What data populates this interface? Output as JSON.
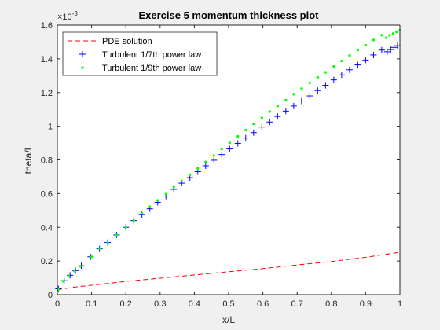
{
  "chart_data": {
    "type": "line",
    "title": "Exercise 5 momentum thickness plot",
    "xlabel": "x/L",
    "ylabel": "theta/L",
    "exponent_label": "×10",
    "exponent_power": "-3",
    "xlim": [
      0,
      1
    ],
    "ylim": [
      0,
      1.6
    ],
    "xticks": [
      0,
      0.1,
      0.2,
      0.3,
      0.4,
      0.5,
      0.6,
      0.7,
      0.8,
      0.9,
      1
    ],
    "xtick_labels": [
      "0",
      "0.1",
      "0.2",
      "0.3",
      "0.4",
      "0.5",
      "0.6",
      "0.7",
      "0.8",
      "0.9",
      "1"
    ],
    "yticks": [
      0,
      0.2,
      0.4,
      0.6,
      0.8,
      1,
      1.2,
      1.4,
      1.6
    ],
    "ytick_labels": [
      "0",
      "0.2",
      "0.4",
      "0.6",
      "0.8",
      "1",
      "1.2",
      "1.4",
      "1.6"
    ],
    "grid": false,
    "legend_position": "top-left",
    "series": [
      {
        "name": "PDE solution",
        "style": "dashed-line",
        "color": "#ff0000",
        "x": [
          0,
          0.05,
          0.1,
          0.2,
          0.3,
          0.4,
          0.5,
          0.6,
          0.7,
          0.8,
          0.9,
          1.0
        ],
        "y": [
          0.03,
          0.045,
          0.056,
          0.079,
          0.098,
          0.117,
          0.136,
          0.155,
          0.177,
          0.197,
          0.222,
          0.252
        ]
      },
      {
        "name": "Turbulent 1/7th power law",
        "style": "plus-marker",
        "color": "#0000ff",
        "x": [
          0.003,
          0.02,
          0.037,
          0.053,
          0.07,
          0.097,
          0.123,
          0.147,
          0.173,
          0.2,
          0.223,
          0.247,
          0.27,
          0.293,
          0.317,
          0.34,
          0.363,
          0.387,
          0.41,
          0.433,
          0.457,
          0.48,
          0.503,
          0.527,
          0.55,
          0.573,
          0.597,
          0.62,
          0.643,
          0.667,
          0.69,
          0.713,
          0.737,
          0.76,
          0.783,
          0.807,
          0.83,
          0.853,
          0.877,
          0.9,
          0.923,
          0.947,
          0.963,
          0.973,
          0.983,
          0.993
        ],
        "y": [
          0.035,
          0.083,
          0.115,
          0.143,
          0.172,
          0.225,
          0.272,
          0.31,
          0.355,
          0.4,
          0.44,
          0.475,
          0.51,
          0.548,
          0.585,
          0.625,
          0.662,
          0.695,
          0.73,
          0.765,
          0.798,
          0.832,
          0.865,
          0.898,
          0.93,
          0.962,
          0.995,
          1.025,
          1.058,
          1.09,
          1.12,
          1.15,
          1.18,
          1.212,
          1.243,
          1.275,
          1.305,
          1.335,
          1.364,
          1.393,
          1.423,
          1.452,
          1.442,
          1.455,
          1.468,
          1.478
        ]
      },
      {
        "name": "Turbulent 1/9th power law",
        "style": "dot-marker",
        "color": "#00ff00",
        "x": [
          0.003,
          0.017,
          0.033,
          0.05,
          0.067,
          0.1,
          0.123,
          0.147,
          0.173,
          0.2,
          0.223,
          0.247,
          0.27,
          0.293,
          0.317,
          0.34,
          0.363,
          0.387,
          0.41,
          0.433,
          0.457,
          0.48,
          0.503,
          0.527,
          0.55,
          0.573,
          0.597,
          0.62,
          0.643,
          0.667,
          0.69,
          0.713,
          0.737,
          0.76,
          0.783,
          0.807,
          0.83,
          0.853,
          0.877,
          0.9,
          0.923,
          0.947,
          0.96,
          0.97,
          0.98,
          0.99,
          1.0
        ],
        "y": [
          0.03,
          0.08,
          0.112,
          0.14,
          0.168,
          0.225,
          0.275,
          0.31,
          0.355,
          0.4,
          0.44,
          0.482,
          0.522,
          0.56,
          0.597,
          0.638,
          0.675,
          0.712,
          0.75,
          0.788,
          0.826,
          0.865,
          0.902,
          0.94,
          0.977,
          1.014,
          1.05,
          1.087,
          1.12,
          1.155,
          1.19,
          1.224,
          1.258,
          1.29,
          1.32,
          1.355,
          1.387,
          1.42,
          1.452,
          1.482,
          1.512,
          1.54,
          1.525,
          1.54,
          1.55,
          1.56,
          1.57
        ]
      }
    ]
  }
}
